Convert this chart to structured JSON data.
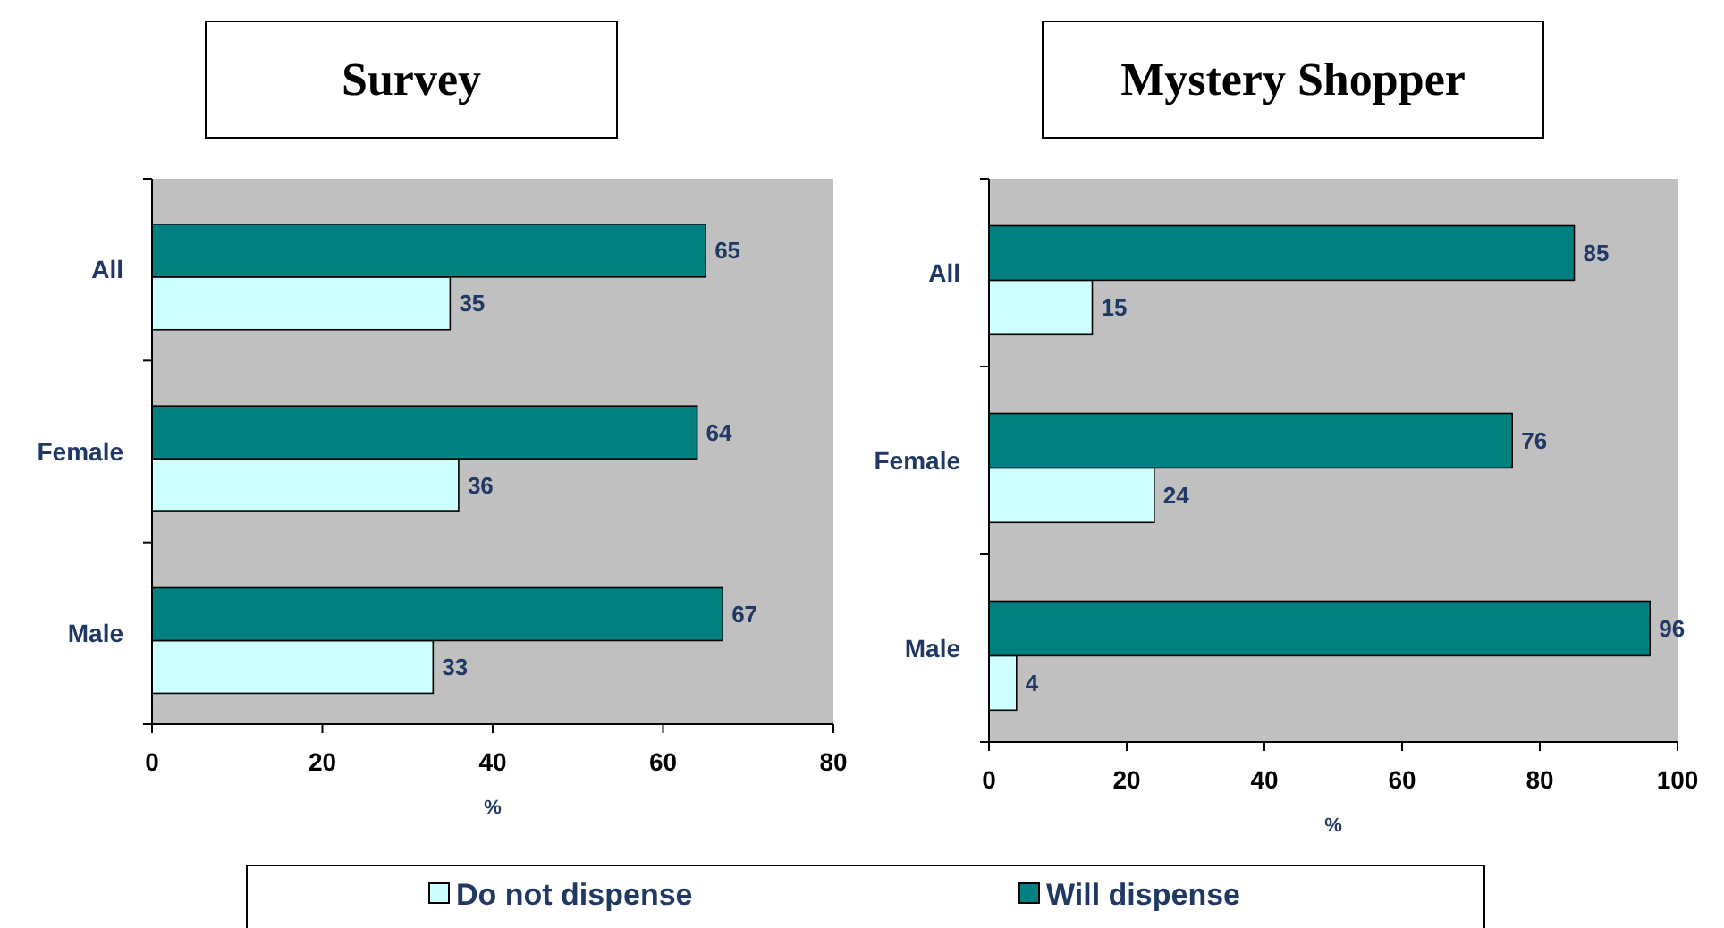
{
  "chart_data": [
    {
      "type": "bar",
      "orientation": "horizontal",
      "title": "Survey",
      "xlabel": "%",
      "categories": [
        "All",
        "Female",
        "Male"
      ],
      "xlim": [
        0,
        80
      ],
      "xticks": [
        0,
        20,
        40,
        60,
        80
      ],
      "data_labels": true,
      "legend": "bottom",
      "series": [
        {
          "name": "Do not dispense",
          "color": "#ccffff",
          "values": [
            35,
            36,
            33
          ]
        },
        {
          "name": "Will dispense",
          "color": "#008080",
          "values": [
            65,
            64,
            67
          ]
        }
      ]
    },
    {
      "type": "bar",
      "orientation": "horizontal",
      "title": "Mystery Shopper",
      "xlabel": "%",
      "categories": [
        "All",
        "Female",
        "Male"
      ],
      "xlim": [
        0,
        100
      ],
      "xticks": [
        0,
        20,
        40,
        60,
        80,
        100
      ],
      "data_labels": true,
      "series": [
        {
          "color": "#ccffff",
          "values": [
            15,
            24,
            4
          ]
        },
        {
          "color": "#008080",
          "values": [
            85,
            76,
            96
          ]
        }
      ]
    }
  ]
}
